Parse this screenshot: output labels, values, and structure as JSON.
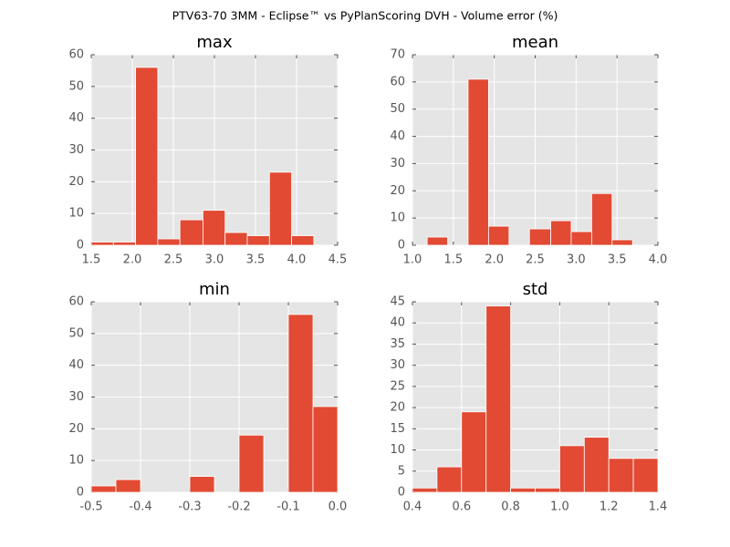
{
  "title": "PTV63-70 3MM - Eclipse™ vs PyPlanScoring DVH - Volume error (%)",
  "chart_data": [
    {
      "type": "histogram",
      "title": "max",
      "color": "#e24a33",
      "grid": true,
      "bins": [
        1.5,
        1.77,
        2.04,
        2.31,
        2.58,
        2.86,
        3.13,
        3.4,
        3.67,
        3.94,
        4.21
      ],
      "values": [
        1,
        1,
        56,
        2,
        8,
        11,
        4,
        3,
        23,
        3
      ],
      "xlim": [
        1.5,
        4.5
      ],
      "ylim": [
        0,
        60
      ],
      "xticks": [
        1.5,
        {
          "value": 2,
          "label": "2.0"
        },
        2.5,
        {
          "value": 3,
          "label": "3.0"
        },
        3.5,
        {
          "value": 4,
          "label": "4.0"
        },
        4.5
      ],
      "yticks": [
        0,
        10,
        20,
        30,
        40,
        50,
        60
      ]
    },
    {
      "type": "histogram",
      "title": "mean",
      "color": "#e24a33",
      "grid": true,
      "bins": [
        1.18,
        1.43,
        1.68,
        1.93,
        2.18,
        2.43,
        2.69,
        2.94,
        3.19,
        3.44,
        3.69
      ],
      "values": [
        3,
        0,
        61,
        7,
        0,
        6,
        9,
        5,
        19,
        2
      ],
      "xlim": [
        1,
        4
      ],
      "ylim": [
        0,
        70
      ],
      "xticks": [
        {
          "value": 1,
          "label": "1.0"
        },
        1.5,
        {
          "value": 2,
          "label": "2.0"
        },
        2.5,
        {
          "value": 3,
          "label": "3.0"
        },
        3.5,
        {
          "value": 4,
          "label": "4.0"
        }
      ],
      "yticks": [
        0,
        10,
        20,
        30,
        40,
        50,
        60,
        70
      ]
    },
    {
      "type": "histogram",
      "title": "min",
      "color": "#e24a33",
      "grid": true,
      "bins": [
        -0.5,
        -0.45,
        -0.4,
        -0.35,
        -0.3,
        -0.25,
        -0.2,
        -0.15,
        -0.1,
        -0.05,
        0
      ],
      "values": [
        2,
        4,
        0,
        0,
        5,
        0,
        18,
        0,
        56,
        27
      ],
      "xlim": [
        -0.5,
        0
      ],
      "ylim": [
        0,
        60
      ],
      "xticks": [
        -0.5,
        -0.4,
        -0.3,
        -0.2,
        -0.1,
        {
          "value": 0,
          "label": "0.0"
        }
      ],
      "yticks": [
        0,
        10,
        20,
        30,
        40,
        50,
        60
      ]
    },
    {
      "type": "histogram",
      "title": "std",
      "color": "#e24a33",
      "grid": true,
      "bins": [
        0.4,
        0.5,
        0.6,
        0.7,
        0.8,
        0.9,
        1,
        1.1,
        1.2,
        1.3,
        1.4
      ],
      "values": [
        1,
        6,
        19,
        44,
        1,
        1,
        11,
        13,
        8,
        8
      ],
      "xlim": [
        0.4,
        1.4
      ],
      "ylim": [
        0,
        45
      ],
      "xticks": [
        0.4,
        0.6,
        0.8,
        {
          "value": 1,
          "label": "1.0"
        },
        1.2,
        1.4
      ],
      "yticks": [
        0,
        5,
        10,
        15,
        20,
        25,
        30,
        35,
        40,
        45
      ]
    }
  ]
}
